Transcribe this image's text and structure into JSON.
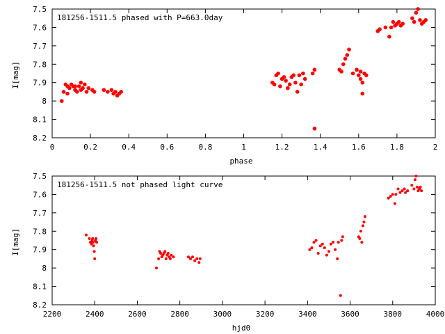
{
  "chart_data": [
    {
      "type": "scatter",
      "title": "181256-1511.5 phased with P=663.0day",
      "xlabel": "phase",
      "ylabel": "I[mag]",
      "xlim": [
        0,
        2
      ],
      "ylim": [
        7.5,
        8.2
      ],
      "y_inverted": true,
      "grid": false,
      "marker_color": "#ff0000",
      "x_ticks": [
        {
          "value": 0,
          "label": "0"
        },
        {
          "value": 0.2,
          "label": "0.2"
        },
        {
          "value": 0.4,
          "label": "0.4"
        },
        {
          "value": 0.6,
          "label": "0.6"
        },
        {
          "value": 0.8,
          "label": "0.8"
        },
        {
          "value": 1.0,
          "label": "1"
        },
        {
          "value": 1.2,
          "label": "1.2"
        },
        {
          "value": 1.4,
          "label": "1.4"
        },
        {
          "value": 1.6,
          "label": "1.6"
        },
        {
          "value": 1.8,
          "label": "1.8"
        },
        {
          "value": 2.0,
          "label": "2"
        }
      ],
      "y_ticks": [
        {
          "value": 7.5,
          "label": "7.5"
        },
        {
          "value": 7.6,
          "label": "7.6"
        },
        {
          "value": 7.7,
          "label": "7.7"
        },
        {
          "value": 7.8,
          "label": "7.8"
        },
        {
          "value": 7.9,
          "label": "7.9"
        },
        {
          "value": 8.0,
          "label": "8"
        },
        {
          "value": 8.1,
          "label": "8.1"
        },
        {
          "value": 8.2,
          "label": "8.2"
        }
      ],
      "points": [
        [
          0.05,
          8.0
        ],
        [
          0.06,
          7.95
        ],
        [
          0.07,
          7.91
        ],
        [
          0.08,
          7.92
        ],
        [
          0.08,
          7.96
        ],
        [
          0.09,
          7.93
        ],
        [
          0.1,
          7.91
        ],
        [
          0.11,
          7.92
        ],
        [
          0.12,
          7.94
        ],
        [
          0.12,
          7.92
        ],
        [
          0.13,
          7.95
        ],
        [
          0.14,
          7.92
        ],
        [
          0.15,
          7.9
        ],
        [
          0.15,
          7.94
        ],
        [
          0.16,
          7.93
        ],
        [
          0.17,
          7.91
        ],
        [
          0.18,
          7.95
        ],
        [
          0.19,
          7.93
        ],
        [
          0.21,
          7.94
        ],
        [
          0.22,
          7.95
        ],
        [
          0.27,
          7.94
        ],
        [
          0.29,
          7.95
        ],
        [
          0.31,
          7.94
        ],
        [
          0.32,
          7.96
        ],
        [
          0.33,
          7.95
        ],
        [
          0.34,
          7.97
        ],
        [
          0.35,
          7.96
        ],
        [
          0.36,
          7.95
        ],
        [
          1.15,
          7.9
        ],
        [
          1.16,
          7.91
        ],
        [
          1.17,
          7.86
        ],
        [
          1.18,
          7.85
        ],
        [
          1.19,
          7.92
        ],
        [
          1.2,
          7.88
        ],
        [
          1.21,
          7.87
        ],
        [
          1.22,
          7.89
        ],
        [
          1.23,
          7.93
        ],
        [
          1.24,
          7.91
        ],
        [
          1.25,
          7.87
        ],
        [
          1.26,
          7.86
        ],
        [
          1.27,
          7.9
        ],
        [
          1.28,
          7.95
        ],
        [
          1.29,
          7.86
        ],
        [
          1.3,
          7.91
        ],
        [
          1.31,
          7.85
        ],
        [
          1.32,
          7.88
        ],
        [
          1.36,
          7.85
        ],
        [
          1.37,
          7.83
        ],
        [
          1.37,
          8.15
        ],
        [
          1.5,
          7.83
        ],
        [
          1.51,
          7.84
        ],
        [
          1.52,
          7.8
        ],
        [
          1.53,
          7.77
        ],
        [
          1.54,
          7.75
        ],
        [
          1.55,
          7.72
        ],
        [
          1.57,
          7.85
        ],
        [
          1.59,
          7.83
        ],
        [
          1.6,
          7.86
        ],
        [
          1.61,
          7.88
        ],
        [
          1.61,
          7.84
        ],
        [
          1.62,
          7.9
        ],
        [
          1.62,
          7.96
        ],
        [
          1.63,
          7.85
        ],
        [
          1.64,
          7.86
        ],
        [
          1.7,
          7.62
        ],
        [
          1.71,
          7.61
        ],
        [
          1.74,
          7.6
        ],
        [
          1.76,
          7.65
        ],
        [
          1.77,
          7.6
        ],
        [
          1.78,
          7.57
        ],
        [
          1.79,
          7.59
        ],
        [
          1.8,
          7.58
        ],
        [
          1.81,
          7.57
        ],
        [
          1.82,
          7.59
        ],
        [
          1.83,
          7.58
        ],
        [
          1.88,
          7.55
        ],
        [
          1.89,
          7.57
        ],
        [
          1.9,
          7.52
        ],
        [
          1.91,
          7.5
        ],
        [
          1.92,
          7.56
        ],
        [
          1.93,
          7.58
        ],
        [
          1.94,
          7.57
        ],
        [
          1.95,
          7.56
        ]
      ]
    },
    {
      "type": "scatter",
      "title": "181256-1511.5 not phased light curve",
      "xlabel": "hjd0",
      "ylabel": "I[mag]",
      "xlim": [
        2200,
        4000
      ],
      "ylim": [
        7.5,
        8.2
      ],
      "y_inverted": true,
      "grid": false,
      "marker_color": "#ff0000",
      "x_ticks": [
        {
          "value": 2200,
          "label": "2200"
        },
        {
          "value": 2400,
          "label": "2400"
        },
        {
          "value": 2600,
          "label": "2600"
        },
        {
          "value": 2800,
          "label": "2800"
        },
        {
          "value": 3000,
          "label": "3000"
        },
        {
          "value": 3200,
          "label": "3200"
        },
        {
          "value": 3400,
          "label": "3400"
        },
        {
          "value": 3600,
          "label": "3600"
        },
        {
          "value": 3800,
          "label": "3800"
        },
        {
          "value": 4000,
          "label": "4000"
        }
      ],
      "y_ticks": [
        {
          "value": 7.5,
          "label": "7.5"
        },
        {
          "value": 7.6,
          "label": "7.6"
        },
        {
          "value": 7.7,
          "label": "7.7"
        },
        {
          "value": 7.8,
          "label": "7.8"
        },
        {
          "value": 7.9,
          "label": "7.9"
        },
        {
          "value": 8.0,
          "label": "8"
        },
        {
          "value": 8.1,
          "label": "8.1"
        },
        {
          "value": 8.2,
          "label": "8.2"
        }
      ],
      "points": [
        [
          2360,
          7.82
        ],
        [
          2375,
          7.84
        ],
        [
          2380,
          7.86
        ],
        [
          2385,
          7.87
        ],
        [
          2388,
          7.85
        ],
        [
          2390,
          7.84
        ],
        [
          2393,
          7.86
        ],
        [
          2395,
          7.88
        ],
        [
          2398,
          7.91
        ],
        [
          2400,
          7.95
        ],
        [
          2403,
          7.85
        ],
        [
          2406,
          7.84
        ],
        [
          2409,
          7.86
        ],
        [
          2690,
          8.0
        ],
        [
          2700,
          7.95
        ],
        [
          2705,
          7.91
        ],
        [
          2710,
          7.92
        ],
        [
          2715,
          7.94
        ],
        [
          2720,
          7.93
        ],
        [
          2725,
          7.92
        ],
        [
          2730,
          7.91
        ],
        [
          2735,
          7.95
        ],
        [
          2740,
          7.93
        ],
        [
          2745,
          7.92
        ],
        [
          2750,
          7.94
        ],
        [
          2755,
          7.95
        ],
        [
          2760,
          7.93
        ],
        [
          2770,
          7.94
        ],
        [
          2840,
          7.94
        ],
        [
          2850,
          7.95
        ],
        [
          2860,
          7.94
        ],
        [
          2870,
          7.96
        ],
        [
          2880,
          7.95
        ],
        [
          2890,
          7.97
        ],
        [
          2895,
          7.95
        ],
        [
          3410,
          7.9
        ],
        [
          3420,
          7.89
        ],
        [
          3430,
          7.86
        ],
        [
          3440,
          7.85
        ],
        [
          3450,
          7.92
        ],
        [
          3460,
          7.88
        ],
        [
          3470,
          7.87
        ],
        [
          3480,
          7.89
        ],
        [
          3490,
          7.93
        ],
        [
          3500,
          7.91
        ],
        [
          3510,
          7.87
        ],
        [
          3520,
          7.86
        ],
        [
          3530,
          7.9
        ],
        [
          3540,
          7.95
        ],
        [
          3545,
          7.86
        ],
        [
          3555,
          8.15
        ],
        [
          3560,
          7.85
        ],
        [
          3565,
          7.83
        ],
        [
          3640,
          7.83
        ],
        [
          3645,
          7.84
        ],
        [
          3650,
          7.8
        ],
        [
          3655,
          7.86
        ],
        [
          3660,
          7.77
        ],
        [
          3665,
          7.75
        ],
        [
          3670,
          7.72
        ],
        [
          3780,
          7.62
        ],
        [
          3790,
          7.61
        ],
        [
          3800,
          7.6
        ],
        [
          3810,
          7.65
        ],
        [
          3815,
          7.6
        ],
        [
          3825,
          7.57
        ],
        [
          3835,
          7.59
        ],
        [
          3845,
          7.58
        ],
        [
          3855,
          7.57
        ],
        [
          3860,
          7.59
        ],
        [
          3870,
          7.58
        ],
        [
          3890,
          7.55
        ],
        [
          3900,
          7.57
        ],
        [
          3905,
          7.52
        ],
        [
          3910,
          7.5
        ],
        [
          3915,
          7.56
        ],
        [
          3920,
          7.58
        ],
        [
          3925,
          7.57
        ],
        [
          3930,
          7.56
        ],
        [
          3935,
          7.58
        ]
      ]
    }
  ]
}
